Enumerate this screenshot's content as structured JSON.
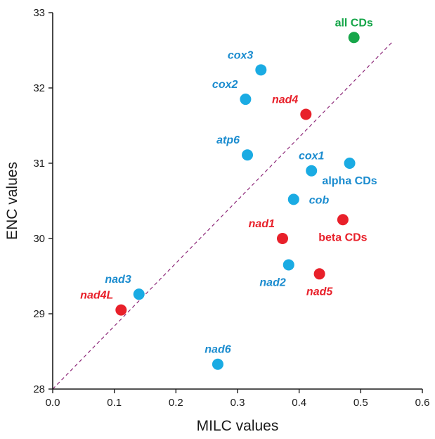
{
  "chart_data": {
    "type": "scatter",
    "xlabel": "MILC values",
    "ylabel": "ENC values",
    "xlim": [
      0.0,
      0.6
    ],
    "ylim": [
      28,
      33
    ],
    "x_ticks": [
      0.0,
      0.1,
      0.2,
      0.3,
      0.4,
      0.5,
      0.6
    ],
    "x_tick_labels": [
      "0.0",
      "0.1",
      "0.2",
      "0.3",
      "0.4",
      "0.5",
      "0.6"
    ],
    "y_ticks": [
      28,
      29,
      30,
      31,
      32,
      33
    ],
    "y_tick_labels": [
      "28",
      "29",
      "30",
      "31",
      "32",
      "33"
    ],
    "grid": false,
    "reference_line": {
      "from": [
        0.0,
        28.0
      ],
      "to": [
        0.55,
        32.6
      ],
      "style": "dashed",
      "color": "#8e2a7a"
    },
    "colors": {
      "blue": "#1aabe3",
      "red": "#e8202a",
      "green": "#17a64a",
      "label_blue": "#1b8ccf"
    },
    "points": [
      {
        "label": "all CDs",
        "x": 0.489,
        "y": 32.67,
        "color": "green",
        "italic": false,
        "label_pos": "above"
      },
      {
        "label": "cox3",
        "x": 0.338,
        "y": 32.24,
        "color": "blue",
        "italic": true,
        "label_pos": "above-left"
      },
      {
        "label": "cox2",
        "x": 0.313,
        "y": 31.85,
        "color": "blue",
        "italic": true,
        "label_pos": "above-left"
      },
      {
        "label": "nad4",
        "x": 0.411,
        "y": 31.65,
        "color": "red",
        "italic": true,
        "label_pos": "above-left"
      },
      {
        "label": "atp6",
        "x": 0.316,
        "y": 31.11,
        "color": "blue",
        "italic": true,
        "label_pos": "above-left"
      },
      {
        "label": "cox1",
        "x": 0.42,
        "y": 30.9,
        "color": "blue",
        "italic": true,
        "label_pos": "above"
      },
      {
        "label": "alpha CDs",
        "x": 0.482,
        "y": 31.0,
        "color": "blue",
        "italic": false,
        "label_pos": "below"
      },
      {
        "label": "cob",
        "x": 0.391,
        "y": 30.52,
        "color": "blue",
        "italic": true,
        "label_pos": "right"
      },
      {
        "label": "beta CDs",
        "x": 0.471,
        "y": 30.25,
        "color": "red",
        "italic": false,
        "label_pos": "below"
      },
      {
        "label": "nad1",
        "x": 0.373,
        "y": 30.0,
        "color": "red",
        "italic": true,
        "label_pos": "above-left"
      },
      {
        "label": "nad2",
        "x": 0.383,
        "y": 29.65,
        "color": "blue",
        "italic": true,
        "label_pos": "below-left"
      },
      {
        "label": "nad5",
        "x": 0.433,
        "y": 29.53,
        "color": "red",
        "italic": true,
        "label_pos": "below"
      },
      {
        "label": "nad3",
        "x": 0.14,
        "y": 29.26,
        "color": "blue",
        "italic": true,
        "label_pos": "above-left"
      },
      {
        "label": "nad4L",
        "x": 0.111,
        "y": 29.05,
        "color": "red",
        "italic": true,
        "label_pos": "above-left"
      },
      {
        "label": "nad6",
        "x": 0.268,
        "y": 28.33,
        "color": "blue",
        "italic": true,
        "label_pos": "above"
      }
    ]
  }
}
